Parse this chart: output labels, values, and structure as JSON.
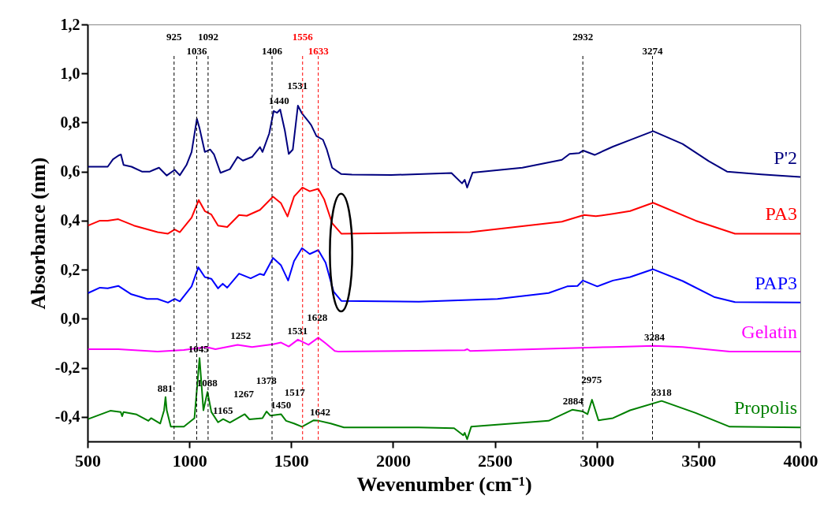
{
  "chart_data": {
    "type": "line",
    "xlabel": "Wevenumber (cm⁻¹)",
    "ylabel": "Absorbance (nm)",
    "xlim": [
      500,
      4000
    ],
    "xticks": [
      500,
      1000,
      1500,
      2000,
      2500,
      3000,
      3500,
      4000
    ],
    "ylim": [
      -0.5,
      1.2
    ],
    "yticks": [
      {
        "value": -0.4,
        "label": "-0,4"
      },
      {
        "value": -0.2,
        "label": "-0,2"
      },
      {
        "value": 0,
        "label": "0,0"
      },
      {
        "value": 0.2,
        "label": "0,2"
      },
      {
        "value": 0.4,
        "label": "0,4"
      },
      {
        "value": 0.6,
        "label": "0,6"
      },
      {
        "value": 0.8,
        "label": "0,8"
      },
      {
        "value": 1.0,
        "label": "1,0"
      },
      {
        "value": 1.2,
        "label": "1,2"
      }
    ],
    "grid": false,
    "line_style": "solid",
    "series": [
      {
        "name": "P'2",
        "color": "#00007f",
        "x": [
          503,
          561,
          599,
          625,
          651,
          664,
          677,
          716,
          767,
          806,
          825,
          851,
          889,
          928,
          953,
          986,
          1011,
          1037,
          1050,
          1076,
          1102,
          1121,
          1153,
          1199,
          1237,
          1263,
          1308,
          1347,
          1359,
          1392,
          1414,
          1431,
          1446,
          1469,
          1488,
          1508,
          1533,
          1553,
          1585,
          1598,
          1624,
          1656,
          1675,
          1701,
          1746,
          1798,
          1991,
          2287,
          2339,
          2352,
          2364,
          2391,
          2635,
          2829,
          2867,
          2913,
          2934,
          2990,
          3080,
          3164,
          3277,
          3422,
          3550,
          3640,
          3808,
          4000
        ],
        "values": [
          0.62,
          0.62,
          0.62,
          0.65,
          0.665,
          0.67,
          0.627,
          0.62,
          0.6,
          0.6,
          0.607,
          0.616,
          0.584,
          0.607,
          0.585,
          0.627,
          0.68,
          0.815,
          0.777,
          0.68,
          0.69,
          0.67,
          0.595,
          0.61,
          0.66,
          0.645,
          0.66,
          0.7,
          0.68,
          0.755,
          0.847,
          0.84,
          0.853,
          0.767,
          0.672,
          0.69,
          0.869,
          0.837,
          0.804,
          0.79,
          0.745,
          0.73,
          0.69,
          0.616,
          0.59,
          0.588,
          0.586,
          0.594,
          0.552,
          0.567,
          0.535,
          0.596,
          0.616,
          0.648,
          0.672,
          0.675,
          0.686,
          0.668,
          0.702,
          0.729,
          0.765,
          0.713,
          0.643,
          0.6,
          0.589,
          0.578
        ]
      },
      {
        "name": "PA3",
        "color": "#ff0000",
        "x": [
          503,
          561,
          599,
          651,
          728,
          844,
          895,
          928,
          953,
          1011,
          1046,
          1076,
          1108,
          1141,
          1186,
          1244,
          1282,
          1347,
          1411,
          1450,
          1482,
          1514,
          1555,
          1591,
          1633,
          1662,
          1701,
          1746,
          2378,
          2829,
          2938,
          2996,
          3080,
          3164,
          3277,
          3486,
          3679,
          4000
        ],
        "values": [
          0.38,
          0.4,
          0.4,
          0.406,
          0.38,
          0.353,
          0.347,
          0.364,
          0.353,
          0.412,
          0.484,
          0.439,
          0.425,
          0.38,
          0.374,
          0.423,
          0.42,
          0.444,
          0.498,
          0.471,
          0.417,
          0.498,
          0.535,
          0.52,
          0.53,
          0.487,
          0.39,
          0.347,
          0.353,
          0.396,
          0.423,
          0.418,
          0.428,
          0.439,
          0.473,
          0.4,
          0.347,
          0.347
        ]
      },
      {
        "name": "PAP3",
        "color": "#0000ff",
        "x": [
          503,
          561,
          599,
          651,
          715,
          793,
          844,
          895,
          928,
          953,
          1011,
          1044,
          1076,
          1108,
          1141,
          1164,
          1186,
          1244,
          1301,
          1347,
          1366,
          1411,
          1450,
          1485,
          1514,
          1553,
          1591,
          1633,
          1669,
          1708,
          1746,
          2127,
          2513,
          2764,
          2855,
          2906,
          2932,
          3003,
          3080,
          3164,
          3277,
          3422,
          3576,
          3679,
          4000
        ],
        "values": [
          0.105,
          0.127,
          0.124,
          0.134,
          0.1,
          0.081,
          0.081,
          0.066,
          0.081,
          0.071,
          0.132,
          0.21,
          0.17,
          0.163,
          0.124,
          0.143,
          0.127,
          0.184,
          0.165,
          0.183,
          0.178,
          0.248,
          0.218,
          0.156,
          0.235,
          0.288,
          0.264,
          0.28,
          0.229,
          0.111,
          0.073,
          0.07,
          0.081,
          0.105,
          0.132,
          0.134,
          0.156,
          0.132,
          0.156,
          0.17,
          0.202,
          0.154,
          0.089,
          0.068,
          0.066
        ]
      },
      {
        "name": "Gelatin",
        "color": "#ff00ff",
        "x": [
          503,
          651,
          844,
          973,
          1083,
          1128,
          1237,
          1308,
          1411,
          1450,
          1488,
          1533,
          1585,
          1633,
          1669,
          1714,
          1733,
          2352,
          2365,
          2378,
          3080,
          3280,
          3422,
          3653,
          4000
        ],
        "values": [
          -0.124,
          -0.124,
          -0.134,
          -0.127,
          -0.115,
          -0.124,
          -0.106,
          -0.115,
          -0.104,
          -0.097,
          -0.113,
          -0.085,
          -0.106,
          -0.077,
          -0.1,
          -0.131,
          -0.134,
          -0.128,
          -0.124,
          -0.131,
          -0.115,
          -0.11,
          -0.115,
          -0.134,
          -0.134
        ]
      },
      {
        "name": "Propolis",
        "color": "#008000",
        "x": [
          503,
          612,
          663,
          670,
          677,
          741,
          799,
          812,
          857,
          876,
          883,
          889,
          909,
          973,
          1025,
          1050,
          1069,
          1089,
          1108,
          1141,
          1166,
          1199,
          1272,
          1295,
          1359,
          1379,
          1398,
          1450,
          1475,
          1514,
          1553,
          1611,
          1637,
          1694,
          1759,
          2127,
          2300,
          2345,
          2352,
          2364,
          2384,
          2764,
          2880,
          2932,
          2955,
          2977,
          3009,
          3080,
          3164,
          3319,
          3486,
          3653,
          4000
        ],
        "values": [
          -0.409,
          -0.375,
          -0.38,
          -0.397,
          -0.38,
          -0.39,
          -0.416,
          -0.405,
          -0.427,
          -0.373,
          -0.319,
          -0.373,
          -0.44,
          -0.44,
          -0.405,
          -0.16,
          -0.373,
          -0.298,
          -0.38,
          -0.422,
          -0.409,
          -0.423,
          -0.389,
          -0.41,
          -0.405,
          -0.378,
          -0.395,
          -0.389,
          -0.416,
          -0.427,
          -0.44,
          -0.414,
          -0.416,
          -0.427,
          -0.443,
          -0.443,
          -0.446,
          -0.475,
          -0.465,
          -0.491,
          -0.44,
          -0.416,
          -0.371,
          -0.378,
          -0.389,
          -0.33,
          -0.414,
          -0.405,
          -0.373,
          -0.335,
          -0.384,
          -0.44,
          -0.443
        ]
      }
    ],
    "ref_lines": [
      {
        "axis": "x",
        "value": 925,
        "label": "925",
        "line_style": "dashed",
        "color": "#000000"
      },
      {
        "axis": "x",
        "value": 1036,
        "label": "1036",
        "line_style": "dashed",
        "color": "#000000"
      },
      {
        "axis": "x",
        "value": 1092,
        "label": "1092",
        "line_style": "dashed",
        "color": "#000000"
      },
      {
        "axis": "x",
        "value": 1406,
        "label": "1406",
        "line_style": "dashed",
        "color": "#000000"
      },
      {
        "axis": "x",
        "value": 1556,
        "label": "1556",
        "line_style": "dashed",
        "color": "#ff0000"
      },
      {
        "axis": "x",
        "value": 1633,
        "label": "1633",
        "line_style": "dashed",
        "color": "#ff0000"
      },
      {
        "axis": "x",
        "value": 2932,
        "label": "2932",
        "line_style": "dashed",
        "color": "#000000"
      },
      {
        "axis": "x",
        "value": 3274,
        "label": "3274",
        "line_style": "dashed",
        "color": "#000000"
      }
    ],
    "annotations": [
      {
        "text": "1440",
        "x": 1440,
        "y": 0.853
      },
      {
        "text": "1531",
        "x": 1531,
        "y": 0.869
      },
      {
        "text": "1252",
        "x": 1252,
        "y": -0.106
      },
      {
        "text": "1531",
        "x": 1531,
        "y": -0.085
      },
      {
        "text": "1628",
        "x": 1628,
        "y": -0.077
      },
      {
        "text": "3284",
        "x": 3284,
        "y": -0.11
      },
      {
        "text": "881",
        "x": 881,
        "y": -0.319
      },
      {
        "text": "1045",
        "x": 1045,
        "y": -0.16
      },
      {
        "text": "1088",
        "x": 1088,
        "y": -0.298
      },
      {
        "text": "1165",
        "x": 1165,
        "y": -0.409
      },
      {
        "text": "1267",
        "x": 1267,
        "y": -0.389
      },
      {
        "text": "1378",
        "x": 1378,
        "y": -0.378
      },
      {
        "text": "1450",
        "x": 1450,
        "y": -0.389
      },
      {
        "text": "1517",
        "x": 1517,
        "y": -0.427
      },
      {
        "text": "1642",
        "x": 1642,
        "y": -0.416
      },
      {
        "text": "2884",
        "x": 2884,
        "y": -0.371
      },
      {
        "text": "2975",
        "x": 2975,
        "y": -0.33
      },
      {
        "text": "3318",
        "x": 3318,
        "y": -0.335
      }
    ]
  }
}
